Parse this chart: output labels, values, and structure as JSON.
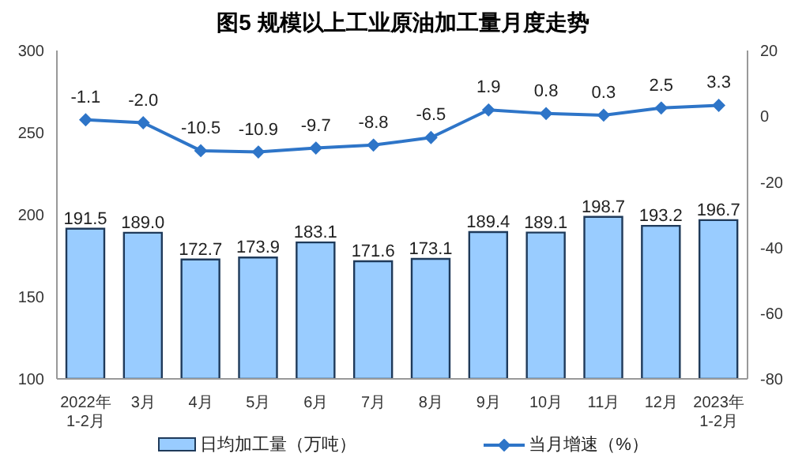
{
  "chart_data": {
    "type": "bar",
    "title": "图5  规模以上工业原油加工量月度走势",
    "categories": [
      "2022年\n1-2月",
      "3月",
      "4月",
      "5月",
      "6月",
      "7月",
      "8月",
      "9月",
      "10月",
      "11月",
      "12月",
      "2023年\n1-2月"
    ],
    "series": [
      {
        "name": "日均加工量（万吨）",
        "color": "#99ccff",
        "values": [
          191.5,
          189.0,
          172.7,
          173.9,
          183.1,
          171.6,
          173.1,
          189.4,
          189.1,
          198.7,
          193.2,
          196.7
        ],
        "value_labels": [
          "191.5",
          "189.0",
          "172.7",
          "173.9",
          "183.1",
          "171.6",
          "173.1",
          "189.4",
          "189.1",
          "198.7",
          "193.2",
          "196.7"
        ]
      },
      {
        "name": "当月增速（%）",
        "type": "line",
        "axis": "y2",
        "color": "#2e75c8",
        "marker": "diamond",
        "values": [
          -1.1,
          -2.0,
          -10.5,
          -10.9,
          -9.7,
          -8.8,
          -6.5,
          1.9,
          0.8,
          0.3,
          2.5,
          3.3
        ],
        "value_labels": [
          "-1.1",
          "-2.0",
          "-10.5",
          "-10.9",
          "-9.7",
          "-8.8",
          "-6.5",
          "1.9",
          "0.8",
          "0.3",
          "2.5",
          "3.3"
        ]
      }
    ],
    "ylim": [
      100,
      300
    ],
    "yticks": [
      100,
      150,
      200,
      250,
      300
    ],
    "y2lim": [
      -80,
      20
    ],
    "y2ticks": [
      -80,
      -60,
      -40,
      -20,
      0,
      20
    ],
    "grid": false,
    "legend": "bottom"
  }
}
